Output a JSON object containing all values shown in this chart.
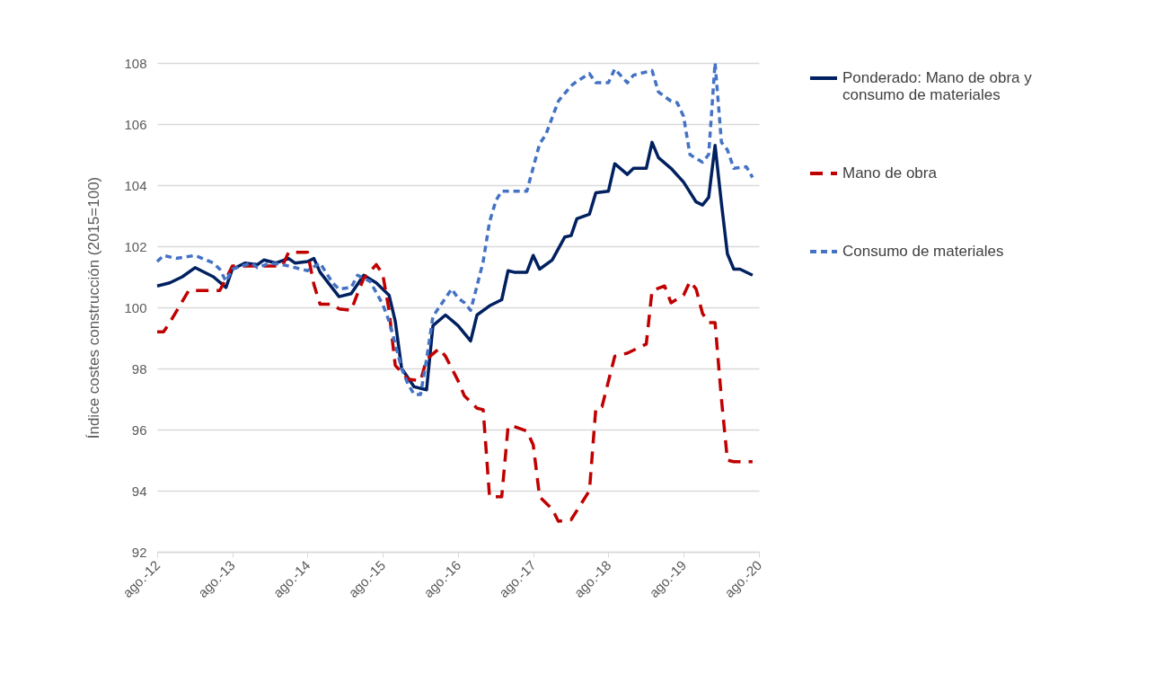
{
  "chart_data": {
    "type": "line",
    "ylabel": "Índice costes construcción (2015=100)",
    "ylim": [
      92,
      108
    ],
    "yticks": [
      92,
      94,
      96,
      98,
      100,
      102,
      104,
      106,
      108
    ],
    "xlim": [
      "2012-08",
      "2020-08"
    ],
    "xticks": [
      {
        "value": "2012-08",
        "label": "ago.-12"
      },
      {
        "value": "2013-08",
        "label": "ago.-13"
      },
      {
        "value": "2014-08",
        "label": "ago.-14"
      },
      {
        "value": "2015-08",
        "label": "ago.-15"
      },
      {
        "value": "2016-08",
        "label": "ago.-16"
      },
      {
        "value": "2017-08",
        "label": "ago.-17"
      },
      {
        "value": "2018-08",
        "label": "ago.-18"
      },
      {
        "value": "2019-08",
        "label": "ago.-19"
      },
      {
        "value": "2020-08",
        "label": "ago.-20"
      }
    ],
    "grid": "y",
    "legend": "right",
    "marker": "none",
    "series": [
      {
        "name": "Ponderado: Mano de obra y consumo de materiales",
        "color": "#002060",
        "line_style": "solid",
        "x": [
          "2012-08",
          "2012-10",
          "2012-12",
          "2013-02",
          "2013-05",
          "2013-07",
          "2013-08",
          "2013-10",
          "2013-12",
          "2014-01",
          "2014-03",
          "2014-05",
          "2014-06",
          "2014-08",
          "2014-09",
          "2014-10",
          "2015-01",
          "2015-03",
          "2015-05",
          "2015-07",
          "2015-09",
          "2015-10",
          "2015-11",
          "2016-01",
          "2016-03",
          "2016-04",
          "2016-06",
          "2016-08",
          "2016-10",
          "2016-11",
          "2017-01",
          "2017-03",
          "2017-04",
          "2017-05",
          "2017-07",
          "2017-08",
          "2017-09",
          "2017-11",
          "2018-01",
          "2018-02",
          "2018-03",
          "2018-05",
          "2018-06",
          "2018-08",
          "2018-09",
          "2018-11",
          "2018-12",
          "2019-02",
          "2019-03",
          "2019-04",
          "2019-06",
          "2019-08",
          "2019-10",
          "2019-11",
          "2019-12",
          "2020-01",
          "2020-02",
          "2020-03",
          "2020-04",
          "2020-05",
          "2020-07"
        ],
        "values": [
          100.7,
          100.8,
          101.0,
          101.3,
          101.0,
          100.65,
          101.25,
          101.45,
          101.4,
          101.55,
          101.45,
          101.6,
          101.45,
          101.5,
          101.6,
          101.15,
          100.35,
          100.45,
          101.05,
          100.8,
          100.4,
          99.55,
          98.0,
          97.4,
          97.3,
          99.4,
          99.75,
          99.4,
          98.9,
          99.75,
          100.05,
          100.25,
          101.2,
          101.15,
          101.15,
          101.7,
          101.25,
          101.55,
          102.3,
          102.35,
          102.9,
          103.05,
          103.75,
          103.8,
          104.7,
          104.35,
          104.55,
          104.55,
          105.4,
          104.9,
          104.55,
          104.1,
          103.45,
          103.35,
          103.6,
          105.3,
          103.4,
          101.75,
          101.25,
          101.25,
          101.05
        ]
      },
      {
        "name": "Mano de obra",
        "color": "#c00000",
        "line_style": "dashed",
        "x": [
          "2012-08",
          "2012-09",
          "2012-10",
          "2013-01",
          "2013-06",
          "2013-08",
          "2014-03",
          "2014-04",
          "2014-05",
          "2014-08",
          "2014-09",
          "2014-10",
          "2014-12",
          "2015-01",
          "2015-03",
          "2015-04",
          "2015-05",
          "2015-07",
          "2015-08",
          "2015-09",
          "2015-10",
          "2015-12",
          "2016-02",
          "2016-03",
          "2016-05",
          "2016-06",
          "2016-08",
          "2016-09",
          "2016-11",
          "2016-12",
          "2017-01",
          "2017-03",
          "2017-04",
          "2017-05",
          "2017-07",
          "2017-08",
          "2017-09",
          "2017-11",
          "2017-12",
          "2018-02",
          "2018-05",
          "2018-06",
          "2018-07",
          "2018-09",
          "2018-11",
          "2019-02",
          "2019-03",
          "2019-05",
          "2019-06",
          "2019-08",
          "2019-09",
          "2019-10",
          "2019-11",
          "2019-12",
          "2020-01",
          "2020-02",
          "2020-03",
          "2020-04",
          "2020-07"
        ],
        "values": [
          99.2,
          99.2,
          99.5,
          100.55,
          100.55,
          101.35,
          101.35,
          101.35,
          101.8,
          101.8,
          100.75,
          100.1,
          100.1,
          99.95,
          99.9,
          100.45,
          100.95,
          101.4,
          101.1,
          99.9,
          98.1,
          97.65,
          97.6,
          98.3,
          98.65,
          98.4,
          97.6,
          97.1,
          96.7,
          96.65,
          93.8,
          93.8,
          96.1,
          96.1,
          95.95,
          95.5,
          93.8,
          93.4,
          93.0,
          93.05,
          94.0,
          96.7,
          96.75,
          98.4,
          98.5,
          98.8,
          100.55,
          100.7,
          100.15,
          100.4,
          100.85,
          100.6,
          99.8,
          99.5,
          99.5,
          97.0,
          95.0,
          94.95,
          94.95
        ]
      },
      {
        "name": "Consumo de materiales",
        "color": "#4472c4",
        "line_style": "dotted",
        "x": [
          "2012-08",
          "2012-09",
          "2012-11",
          "2013-02",
          "2013-05",
          "2013-06",
          "2013-07",
          "2013-08",
          "2013-11",
          "2013-12",
          "2014-02",
          "2014-04",
          "2014-06",
          "2014-08",
          "2014-10",
          "2014-12",
          "2015-01",
          "2015-03",
          "2015-04",
          "2015-06",
          "2015-08",
          "2015-09",
          "2015-10",
          "2015-11",
          "2015-12",
          "2016-01",
          "2016-02",
          "2016-03",
          "2016-04",
          "2016-05",
          "2016-07",
          "2016-08",
          "2016-09",
          "2016-10",
          "2016-11",
          "2016-12",
          "2017-01",
          "2017-02",
          "2017-03",
          "2017-07",
          "2017-09",
          "2017-10",
          "2017-12",
          "2018-02",
          "2018-03",
          "2018-05",
          "2018-06",
          "2018-08",
          "2018-09",
          "2018-11",
          "2018-12",
          "2019-03",
          "2019-04",
          "2019-06",
          "2019-07",
          "2019-08",
          "2019-09",
          "2019-11",
          "2019-12",
          "2020-01",
          "2020-02",
          "2020-03",
          "2020-04",
          "2020-06",
          "2020-07"
        ],
        "values": [
          101.5,
          101.7,
          101.6,
          101.7,
          101.45,
          101.25,
          100.85,
          101.25,
          101.45,
          101.3,
          101.45,
          101.4,
          101.3,
          101.2,
          101.45,
          100.8,
          100.6,
          100.65,
          101.05,
          100.85,
          100.1,
          99.55,
          98.8,
          98.0,
          97.5,
          97.15,
          97.15,
          98.3,
          99.7,
          100.0,
          100.6,
          100.3,
          100.15,
          99.9,
          100.7,
          101.5,
          102.8,
          103.5,
          103.8,
          103.8,
          105.35,
          105.65,
          106.75,
          107.25,
          107.4,
          107.65,
          107.35,
          107.35,
          107.8,
          107.35,
          107.6,
          107.75,
          107.05,
          106.75,
          106.7,
          106.25,
          105.0,
          104.75,
          105.0,
          108.0,
          105.4,
          105.15,
          104.55,
          104.6,
          104.25
        ]
      }
    ]
  }
}
